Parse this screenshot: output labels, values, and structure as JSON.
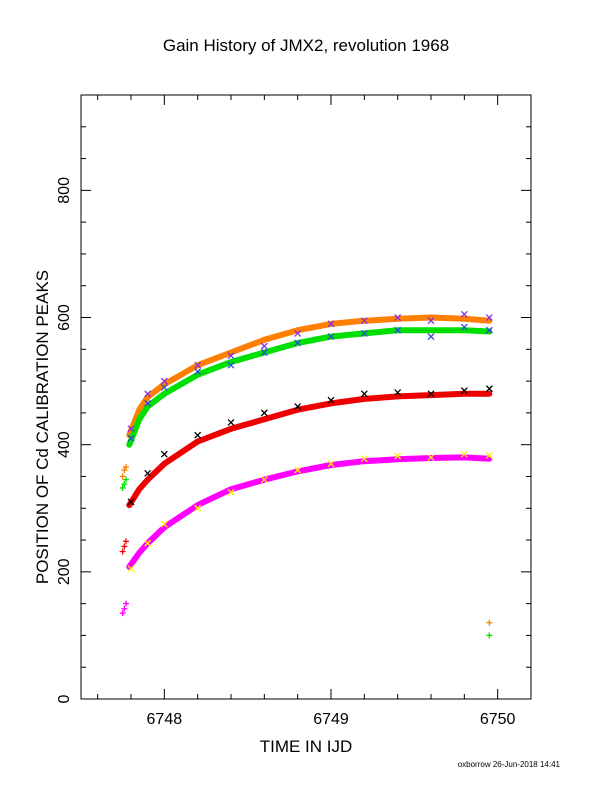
{
  "chart_data": {
    "type": "scatter",
    "title": "Gain History of JMX2, revolution 1968",
    "xlabel": "TIME IN IJD",
    "ylabel": "POSITION OF Cd CALIBRATION PEAKS",
    "xlim": [
      6747.5,
      6750.2
    ],
    "ylim": [
      0,
      950
    ],
    "x_ticks": [
      6748,
      6749,
      6750
    ],
    "y_ticks": [
      0,
      200,
      400,
      600,
      800
    ],
    "grid": false,
    "colors": {
      "purple": "#8a2be2",
      "blue": "#2a4bd7",
      "orange": "#ff7f00",
      "green": "#00e000",
      "black": "#000000",
      "red": "#ee0000",
      "yellow": "#ffee00",
      "magenta": "#ff00ff"
    },
    "scatter_series": [
      {
        "color": "purple",
        "marker": "x",
        "x": [
          6747.8,
          6747.9,
          6748.0,
          6748.2,
          6748.4,
          6748.6,
          6748.8,
          6749.0,
          6749.2,
          6749.4,
          6749.6,
          6749.8,
          6749.95
        ],
        "y": [
          425,
          480,
          500,
          525,
          540,
          555,
          575,
          590,
          595,
          600,
          595,
          605,
          600
        ]
      },
      {
        "color": "blue",
        "marker": "x",
        "x": [
          6747.8,
          6747.9,
          6748.0,
          6748.2,
          6748.4,
          6748.6,
          6748.8,
          6749.0,
          6749.2,
          6749.4,
          6749.6,
          6749.8,
          6749.95
        ],
        "y": [
          410,
          465,
          490,
          515,
          525,
          545,
          560,
          570,
          575,
          580,
          570,
          585,
          580
        ]
      },
      {
        "color": "black",
        "marker": "x",
        "x": [
          6747.8,
          6747.9,
          6748.0,
          6748.2,
          6748.4,
          6748.6,
          6748.8,
          6749.0,
          6749.2,
          6749.4,
          6749.6,
          6749.8,
          6749.95
        ],
        "y": [
          310,
          355,
          385,
          415,
          435,
          450,
          460,
          470,
          480,
          482,
          480,
          485,
          488
        ]
      },
      {
        "color": "yellow",
        "marker": "x",
        "x": [
          6747.8,
          6747.9,
          6748.0,
          6748.2,
          6748.4,
          6748.6,
          6748.8,
          6749.0,
          6749.2,
          6749.4,
          6749.6,
          6749.8,
          6749.95
        ],
        "y": [
          205,
          245,
          275,
          300,
          325,
          345,
          360,
          370,
          378,
          382,
          380,
          385,
          383
        ]
      },
      {
        "color": "orange",
        "marker": "+",
        "x": [
          6747.75,
          6747.76,
          6747.77,
          6749.95
        ],
        "y": [
          350,
          360,
          365,
          120
        ]
      },
      {
        "color": "green",
        "marker": "+",
        "x": [
          6747.75,
          6747.76,
          6747.77,
          6749.95
        ],
        "y": [
          332,
          338,
          345,
          100
        ]
      },
      {
        "color": "red",
        "marker": "+",
        "x": [
          6747.75,
          6747.76,
          6747.77
        ],
        "y": [
          232,
          240,
          248
        ]
      },
      {
        "color": "magenta",
        "marker": "+",
        "x": [
          6747.75,
          6747.76,
          6747.77
        ],
        "y": [
          135,
          142,
          150
        ]
      }
    ],
    "curves": [
      {
        "color": "orange",
        "x": [
          6747.79,
          6747.85,
          6747.9,
          6748.0,
          6748.2,
          6748.4,
          6748.6,
          6748.8,
          6749.0,
          6749.2,
          6749.4,
          6749.6,
          6749.8,
          6749.95
        ],
        "y": [
          415,
          455,
          475,
          495,
          525,
          545,
          565,
          580,
          590,
          595,
          598,
          600,
          598,
          595
        ]
      },
      {
        "color": "green",
        "x": [
          6747.79,
          6747.85,
          6747.9,
          6748.0,
          6748.2,
          6748.4,
          6748.6,
          6748.8,
          6749.0,
          6749.2,
          6749.4,
          6749.6,
          6749.8,
          6749.95
        ],
        "y": [
          400,
          440,
          460,
          480,
          510,
          530,
          545,
          560,
          570,
          575,
          580,
          580,
          580,
          578
        ]
      },
      {
        "color": "red",
        "x": [
          6747.79,
          6747.85,
          6747.9,
          6748.0,
          6748.2,
          6748.4,
          6748.6,
          6748.8,
          6749.0,
          6749.2,
          6749.4,
          6749.6,
          6749.8,
          6749.95
        ],
        "y": [
          305,
          330,
          345,
          370,
          405,
          425,
          440,
          455,
          465,
          472,
          476,
          478,
          480,
          480
        ]
      },
      {
        "color": "magenta",
        "x": [
          6747.79,
          6747.85,
          6747.9,
          6748.0,
          6748.2,
          6748.4,
          6748.6,
          6748.8,
          6749.0,
          6749.2,
          6749.4,
          6749.6,
          6749.8,
          6749.95
        ],
        "y": [
          208,
          230,
          245,
          270,
          305,
          330,
          345,
          358,
          368,
          374,
          377,
          379,
          380,
          378
        ]
      }
    ]
  },
  "footer_text": "oxborrow 26-Jun-2018 14:41"
}
